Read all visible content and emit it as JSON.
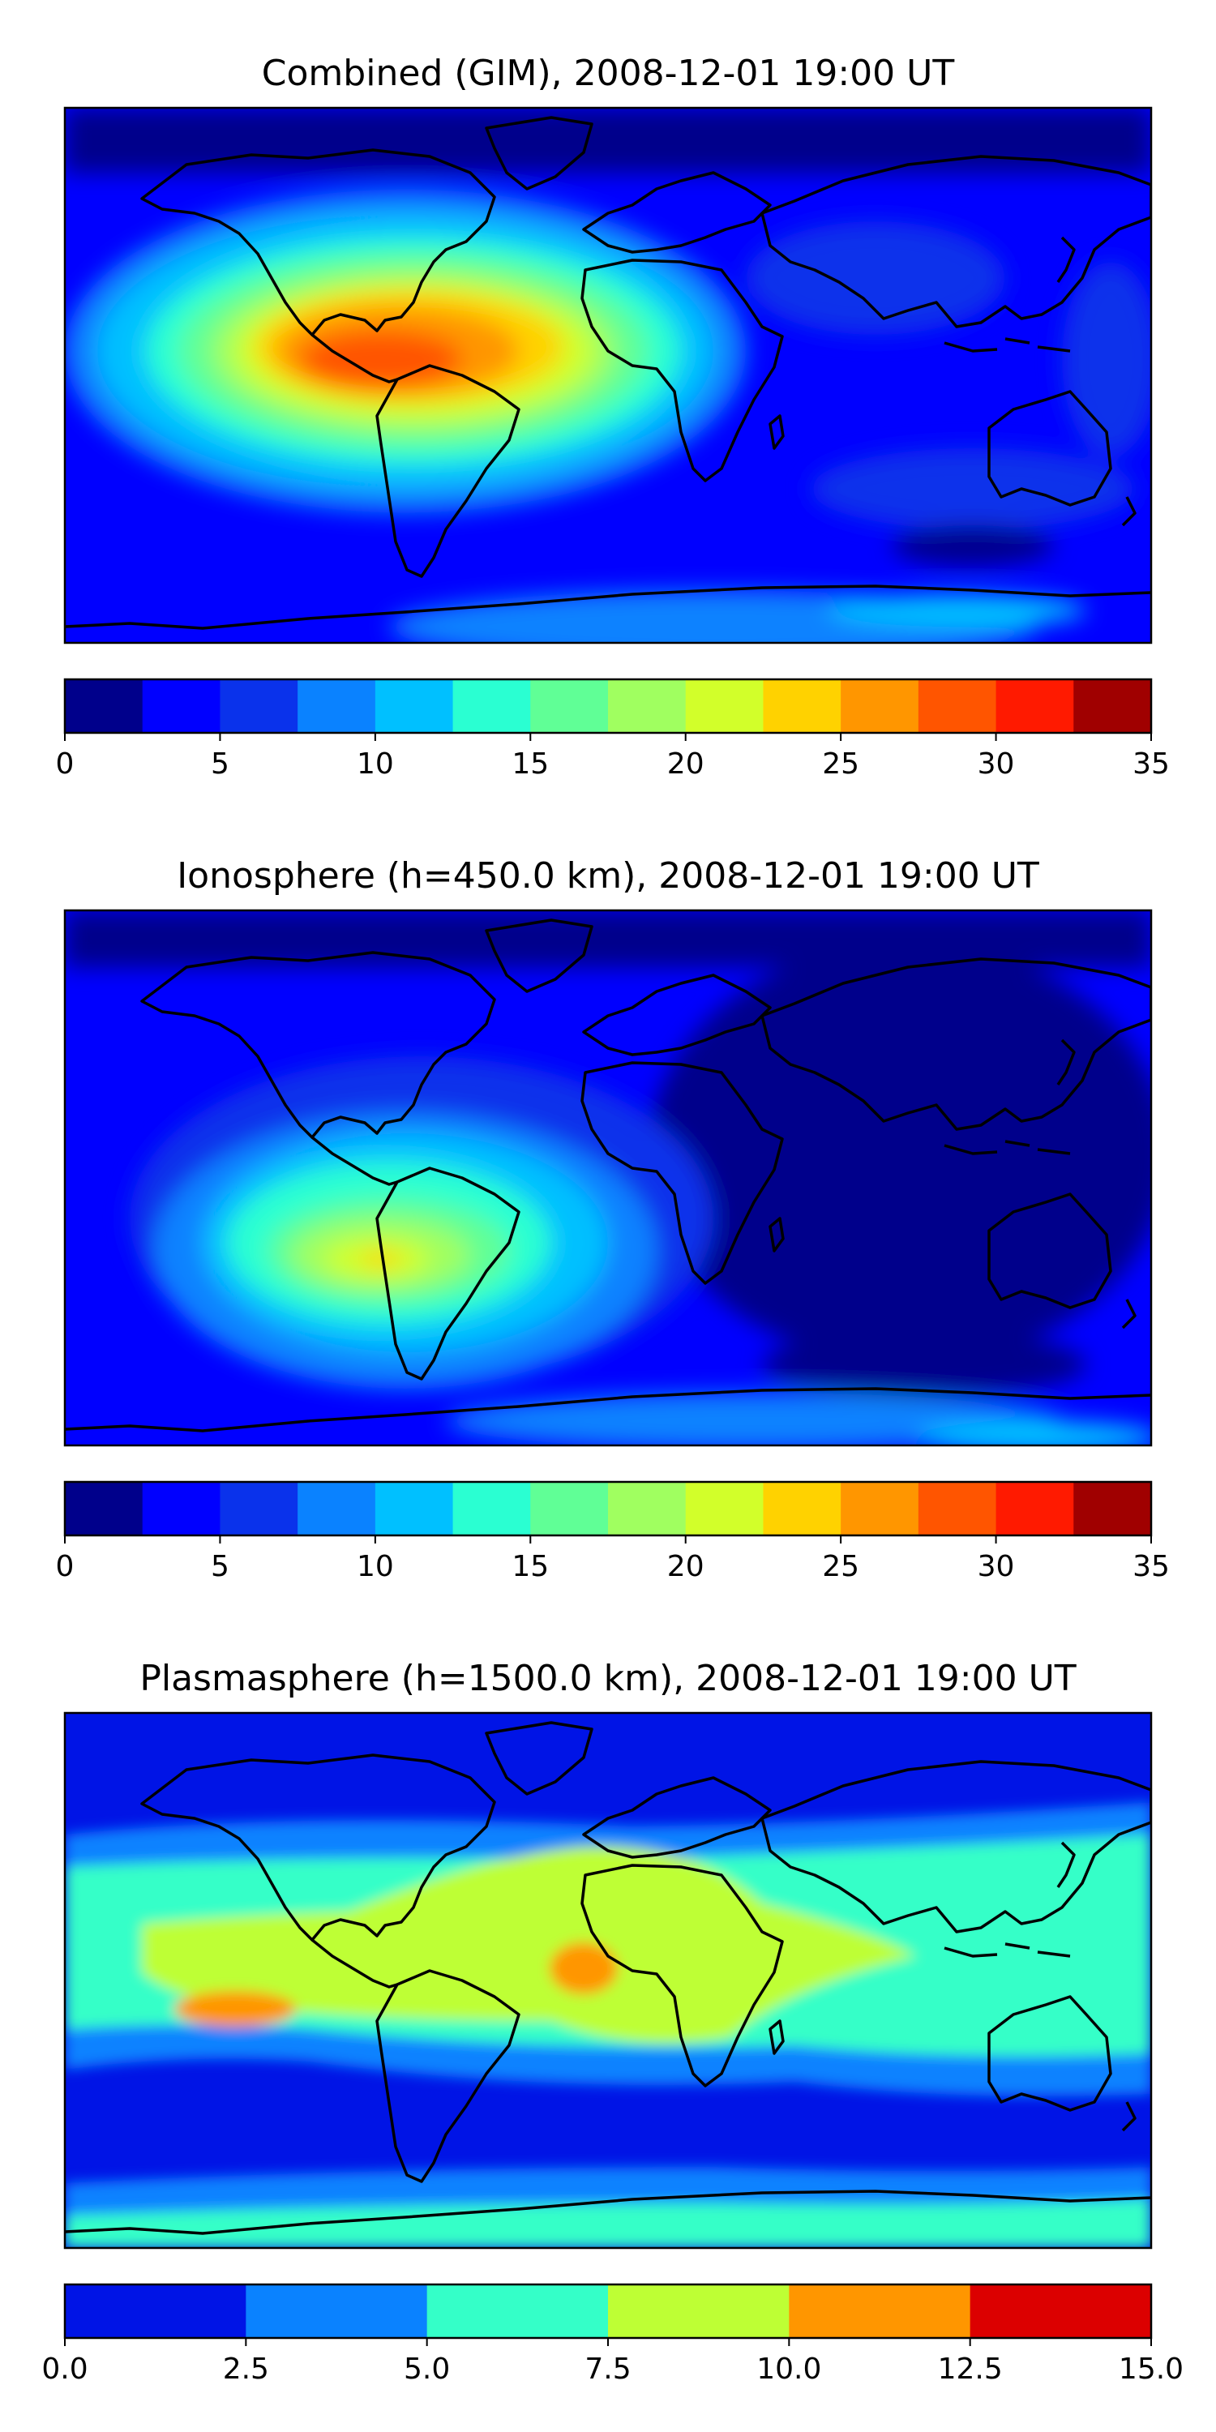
{
  "panels": [
    {
      "id": "combined",
      "title": "Combined (GIM), 2008-12-01 19:00 UT",
      "colorbar": {
        "levels": [
          0,
          2.5,
          5,
          7.5,
          10,
          12.5,
          15,
          17.5,
          20,
          22.5,
          25,
          27.5,
          30,
          32.5,
          35
        ],
        "ticks": [
          "0",
          "5",
          "10",
          "15",
          "20",
          "25",
          "30",
          "35"
        ],
        "colors": [
          "#00008b",
          "#0000ff",
          "#0a32eb",
          "#0a82ff",
          "#00c0ff",
          "#2affd2",
          "#60ff96",
          "#a0ff60",
          "#d2ff2a",
          "#ffd200",
          "#ff9600",
          "#ff5500",
          "#ff1a00",
          "#a00000"
        ]
      }
    },
    {
      "id": "ionosphere",
      "title": "Ionosphere  (h=450.0 km), 2008-12-01 19:00 UT",
      "colorbar": {
        "levels": [
          0,
          2.5,
          5,
          7.5,
          10,
          12.5,
          15,
          17.5,
          20,
          22.5,
          25,
          27.5,
          30,
          32.5,
          35
        ],
        "ticks": [
          "0",
          "5",
          "10",
          "15",
          "20",
          "25",
          "30",
          "35"
        ],
        "colors": [
          "#00008b",
          "#0000ff",
          "#0a32eb",
          "#0a82ff",
          "#00c0ff",
          "#2affd2",
          "#60ff96",
          "#a0ff60",
          "#d2ff2a",
          "#ffd200",
          "#ff9600",
          "#ff5500",
          "#ff1a00",
          "#a00000"
        ]
      }
    },
    {
      "id": "plasmasphere",
      "title": "Plasmasphere (h=1500.0 km), 2008-12-01 19:00 UT",
      "colorbar": {
        "levels": [
          0,
          2.5,
          5,
          7.5,
          10,
          12.5,
          15
        ],
        "ticks": [
          "0.0",
          "2.5",
          "5.0",
          "7.5",
          "10.0",
          "12.5",
          "15.0"
        ],
        "colors": [
          "#0014e6",
          "#0a82ff",
          "#34ffc8",
          "#beff34",
          "#ff9600",
          "#dc0000"
        ]
      }
    }
  ]
}
